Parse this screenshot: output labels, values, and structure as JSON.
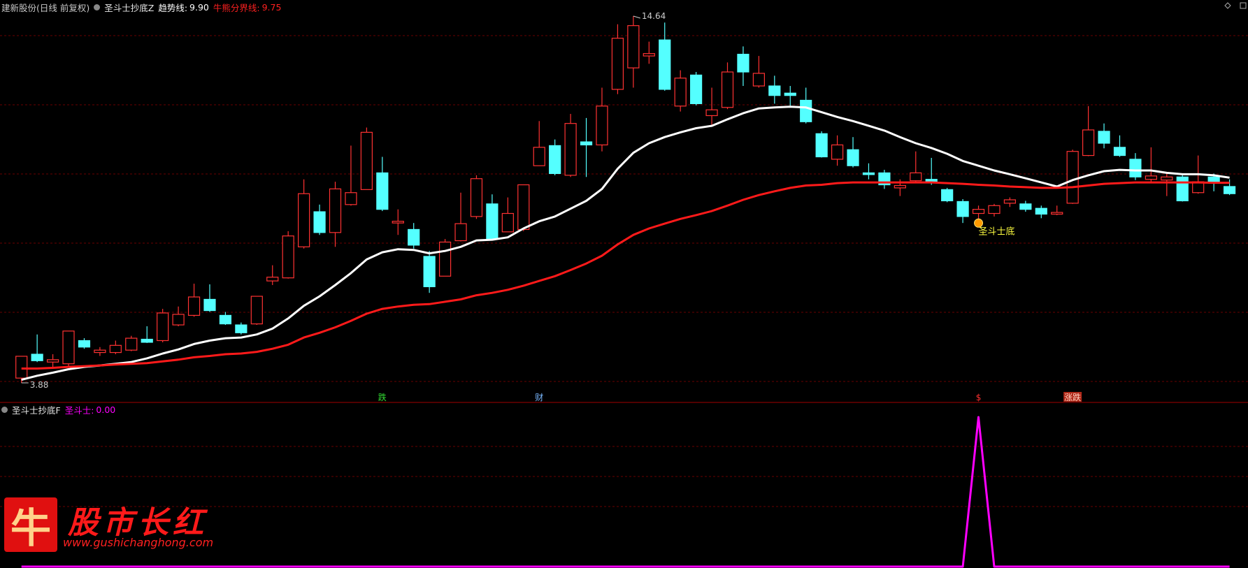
{
  "chart_data": [
    {
      "type": "candlestick",
      "title": "建新股份(日线 前复权)",
      "indicator": "圣斗士抄底Z",
      "up_color": "#ff3232",
      "down_color": "#54ffff",
      "open": [
        4.02,
        4.72,
        4.49,
        4.44,
        5.12,
        4.77,
        4.77,
        4.84,
        5.16,
        5.12,
        5.58,
        5.86,
        6.33,
        5.86,
        5.58,
        5.61,
        6.87,
        6.96,
        7.87,
        8.9,
        8.29,
        9.11,
        9.55,
        10.04,
        8.57,
        8.38,
        7.59,
        7.01,
        8.05,
        8.76,
        9.13,
        8.31,
        8.38,
        10.25,
        10.84,
        9.97,
        10.95,
        10.86,
        12.49,
        13.12,
        13.47,
        13.94,
        12.0,
        12.91,
        11.72,
        11.96,
        13.52,
        12.59,
        12.59,
        12.38,
        12.17,
        11.19,
        10.44,
        10.72,
        10.04,
        10.04,
        9.6,
        9.81,
        9.85,
        9.55,
        9.2,
        8.85,
        8.85,
        9.15,
        9.13,
        9.0,
        8.83,
        9.15,
        10.55,
        11.26,
        10.79,
        10.44,
        9.85,
        9.83,
        9.92,
        9.46,
        9.92,
        9.64
      ],
      "high": [
        4.66,
        5.3,
        4.72,
        5.4,
        5.19,
        4.93,
        5.12,
        5.26,
        5.54,
        6.05,
        6.12,
        6.79,
        6.77,
        5.96,
        5.65,
        6.42,
        7.33,
        8.33,
        9.85,
        9.11,
        9.78,
        10.84,
        11.37,
        10.51,
        8.97,
        8.57,
        7.75,
        8.1,
        9.46,
        9.97,
        9.41,
        9.32,
        9.69,
        11.56,
        11.02,
        11.77,
        11.65,
        12.54,
        14.4,
        14.64,
        13.89,
        14.45,
        13.05,
        13.0,
        12.54,
        13.28,
        13.75,
        13.47,
        12.89,
        12.59,
        12.54,
        11.26,
        11.14,
        11.09,
        10.32,
        10.13,
        9.85,
        10.67,
        10.48,
        9.6,
        9.27,
        9.08,
        9.13,
        9.32,
        9.22,
        9.08,
        9.08,
        10.72,
        12.0,
        11.49,
        11.14,
        10.62,
        10.79,
        10.06,
        9.97,
        10.55,
        10.02,
        9.85
      ],
      "low": [
        3.88,
        4.49,
        4.33,
        4.33,
        4.88,
        4.67,
        4.72,
        4.81,
        5.05,
        5.07,
        5.54,
        5.82,
        5.96,
        5.58,
        5.3,
        5.58,
        6.75,
        6.94,
        7.82,
        8.22,
        7.87,
        9.08,
        9.55,
        8.92,
        8.22,
        7.82,
        6.52,
        7.01,
        8.03,
        8.69,
        8.1,
        8.31,
        8.33,
        10.25,
        9.97,
        9.92,
        9.92,
        10.67,
        12.35,
        12.54,
        13.24,
        12.45,
        11.84,
        12.02,
        11.42,
        11.91,
        12.59,
        12.54,
        12.07,
        11.98,
        11.49,
        10.49,
        10.25,
        10.2,
        9.85,
        9.57,
        9.36,
        9.74,
        9.69,
        9.18,
        8.57,
        8.69,
        8.76,
        9.04,
        8.9,
        8.71,
        8.8,
        9.13,
        10.53,
        10.76,
        10.51,
        9.83,
        9.78,
        9.36,
        9.2,
        9.43,
        9.5,
        9.39
      ],
      "close": [
        4.66,
        4.53,
        4.56,
        5.4,
        4.93,
        4.84,
        4.98,
        5.19,
        5.07,
        5.93,
        5.89,
        6.4,
        6.0,
        5.61,
        5.35,
        6.42,
        6.98,
        8.19,
        9.43,
        8.29,
        9.57,
        9.46,
        11.23,
        8.97,
        8.62,
        7.92,
        6.7,
        8.01,
        8.55,
        9.87,
        8.1,
        8.85,
        9.69,
        10.79,
        10.02,
        11.49,
        10.86,
        12.0,
        13.99,
        14.36,
        13.54,
        12.49,
        12.82,
        12.07,
        11.89,
        13.0,
        13.0,
        12.96,
        12.31,
        12.31,
        11.54,
        10.51,
        10.86,
        10.25,
        9.99,
        9.69,
        9.67,
        10.04,
        9.78,
        9.22,
        8.76,
        8.97,
        9.08,
        9.25,
        8.97,
        8.83,
        8.88,
        10.67,
        11.3,
        10.91,
        10.55,
        9.92,
        9.95,
        9.92,
        9.22,
        9.78,
        9.74,
        9.43
      ],
      "series": [
        {
          "name": "趋势线:",
          "legend_value": "9.90",
          "color": "#ffffff",
          "values": [
            3.97,
            4.09,
            4.18,
            4.28,
            4.35,
            4.39,
            4.44,
            4.49,
            4.6,
            4.74,
            4.86,
            5.02,
            5.12,
            5.19,
            5.21,
            5.3,
            5.47,
            5.77,
            6.14,
            6.42,
            6.75,
            7.1,
            7.5,
            7.71,
            7.8,
            7.78,
            7.68,
            7.75,
            7.87,
            8.06,
            8.08,
            8.15,
            8.41,
            8.62,
            8.76,
            8.99,
            9.22,
            9.57,
            10.16,
            10.63,
            10.91,
            11.09,
            11.23,
            11.35,
            11.42,
            11.61,
            11.79,
            11.93,
            11.96,
            11.98,
            11.96,
            11.82,
            11.68,
            11.56,
            11.42,
            11.28,
            11.09,
            10.91,
            10.77,
            10.6,
            10.39,
            10.25,
            10.11,
            10.0,
            9.88,
            9.76,
            9.64,
            9.83,
            9.97,
            10.09,
            10.13,
            10.11,
            10.11,
            10.04,
            10.0,
            10.0,
            9.97,
            9.9
          ]
        },
        {
          "name": "牛熊分界线:",
          "legend_value": "9.75",
          "color": "#ff1a1a",
          "values": [
            4.3,
            4.3,
            4.32,
            4.35,
            4.37,
            4.39,
            4.42,
            4.44,
            4.46,
            4.51,
            4.56,
            4.63,
            4.67,
            4.72,
            4.74,
            4.79,
            4.88,
            5.0,
            5.21,
            5.35,
            5.51,
            5.7,
            5.91,
            6.05,
            6.12,
            6.17,
            6.19,
            6.26,
            6.33,
            6.45,
            6.52,
            6.61,
            6.73,
            6.87,
            7.01,
            7.19,
            7.38,
            7.61,
            7.94,
            8.22,
            8.41,
            8.55,
            8.69,
            8.8,
            8.92,
            9.08,
            9.25,
            9.39,
            9.5,
            9.6,
            9.67,
            9.69,
            9.74,
            9.76,
            9.76,
            9.76,
            9.76,
            9.76,
            9.76,
            9.74,
            9.72,
            9.69,
            9.67,
            9.64,
            9.62,
            9.6,
            9.6,
            9.62,
            9.67,
            9.72,
            9.74,
            9.76,
            9.76,
            9.76,
            9.76,
            9.76,
            9.75,
            9.75
          ]
        }
      ],
      "ylim": [
        3.88,
        14.64
      ],
      "price_marks": [
        {
          "index": 39,
          "value": 14.64
        },
        {
          "index": 0,
          "value": 3.88
        }
      ],
      "signal": {
        "index": 61,
        "text": "圣斗士底"
      },
      "events": [
        {
          "index": 23,
          "text": "跌",
          "color": "#33dd33"
        },
        {
          "index": 33,
          "text": "财",
          "color": "#7ab8ff"
        },
        {
          "index": 61,
          "text": "$",
          "color": "#ff3030"
        },
        {
          "index": 67,
          "text": "涨跌",
          "color": "#ffd0c0",
          "background": "#b02818"
        }
      ]
    },
    {
      "type": "line",
      "title": "圣斗士抄底F",
      "series": [
        {
          "name": "圣斗士:",
          "legend_value": "0.00",
          "color": "#ff00ff",
          "values": [
            0,
            0,
            0,
            0,
            0,
            0,
            0,
            0,
            0,
            0,
            0,
            0,
            0,
            0,
            0,
            0,
            0,
            0,
            0,
            0,
            0,
            0,
            0,
            0,
            0,
            0,
            0,
            0,
            0,
            0,
            0,
            0,
            0,
            0,
            0,
            0,
            0,
            0,
            0,
            0,
            0,
            0,
            0,
            0,
            0,
            0,
            0,
            0,
            0,
            0,
            0,
            0,
            0,
            0,
            0,
            0,
            0,
            0,
            0,
            0,
            0,
            1,
            0,
            0,
            0,
            0,
            0,
            0,
            0,
            0,
            0,
            0,
            0,
            0,
            0,
            0,
            0,
            0
          ]
        }
      ],
      "ylim": [
        0,
        1
      ]
    }
  ],
  "watermark": {
    "logo": "牛",
    "title": "股市长红",
    "url": "www.gushichanghong.com"
  }
}
